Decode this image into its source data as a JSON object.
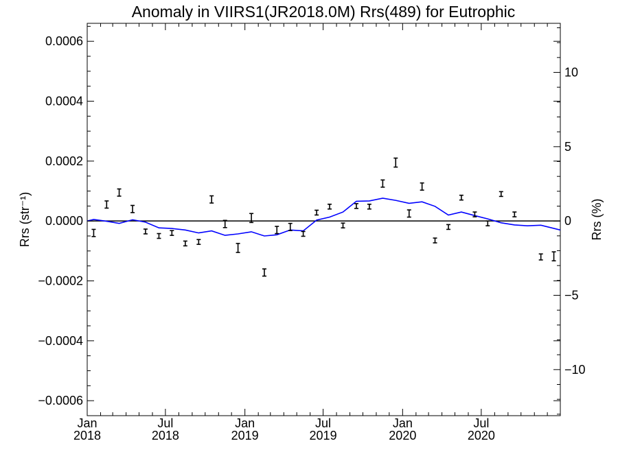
{
  "chart_data": {
    "type": "line",
    "title": "Anomaly in VIIRS1(JR2018.0M) Rrs(489) for Eutrophic",
    "ylabel_left": "Rrs (str⁻¹)",
    "ylabel_right": "Rrs (%)",
    "xlabel": "",
    "xlim": [
      "2018-01-01",
      "2020-12-31"
    ],
    "ylim": [
      -0.00065,
      0.00066
    ],
    "ylim_right": [
      -13.1,
      13.3
    ],
    "grid": false,
    "legend": "none",
    "x_ticks": [
      {
        "date": "2018-01-01",
        "month": "Jan",
        "year": "2018"
      },
      {
        "date": "2018-07-01",
        "month": "Jul",
        "year": "2018"
      },
      {
        "date": "2019-01-01",
        "month": "Jan",
        "year": "2019"
      },
      {
        "date": "2019-07-01",
        "month": "Jul",
        "year": "2019"
      },
      {
        "date": "2020-01-01",
        "month": "Jan",
        "year": "2020"
      },
      {
        "date": "2020-07-01",
        "month": "Jul",
        "year": "2020"
      }
    ],
    "y_ticks_left": [
      {
        "value": 0.0006,
        "label": "0.0006"
      },
      {
        "value": 0.0004,
        "label": "0.0004"
      },
      {
        "value": 0.0002,
        "label": "0.0002"
      },
      {
        "value": 0.0,
        "label": "0.0000"
      },
      {
        "value": -0.0002,
        "label": "−0.0002"
      },
      {
        "value": -0.0004,
        "label": "−0.0004"
      },
      {
        "value": -0.0006,
        "label": "−0.0006"
      }
    ],
    "y_ticks_right": [
      {
        "value": 10,
        "label": "10"
      },
      {
        "value": 5,
        "label": "5"
      },
      {
        "value": 0,
        "label": "0"
      },
      {
        "value": -5,
        "label": "−5"
      },
      {
        "value": -10,
        "label": "−10"
      }
    ],
    "series": [
      {
        "type": "errorbar",
        "color": "#000000",
        "points": [
          {
            "x": "2018-01-16",
            "y": -4e-05,
            "err": 1.2e-05
          },
          {
            "x": "2018-02-15",
            "y": 5.5e-05,
            "err": 1.2e-05
          },
          {
            "x": "2018-03-16",
            "y": 9.5e-05,
            "err": 1.2e-05
          },
          {
            "x": "2018-04-16",
            "y": 4e-05,
            "err": 1.2e-05
          },
          {
            "x": "2018-05-16",
            "y": -3.5e-05,
            "err": 8e-06
          },
          {
            "x": "2018-06-16",
            "y": -5e-05,
            "err": 8e-06
          },
          {
            "x": "2018-07-16",
            "y": -4e-05,
            "err": 8e-06
          },
          {
            "x": "2018-08-16",
            "y": -7.5e-05,
            "err": 8e-06
          },
          {
            "x": "2018-09-16",
            "y": -7e-05,
            "err": 8e-06
          },
          {
            "x": "2018-10-16",
            "y": 7.2e-05,
            "err": 1.2e-05
          },
          {
            "x": "2018-11-16",
            "y": -1e-05,
            "err": 1.2e-05
          },
          {
            "x": "2018-12-16",
            "y": -9e-05,
            "err": 1.5e-05
          },
          {
            "x": "2019-01-16",
            "y": 1e-05,
            "err": 1.5e-05
          },
          {
            "x": "2019-02-15",
            "y": -0.000172,
            "err": 1.2e-05
          },
          {
            "x": "2019-03-16",
            "y": -3e-05,
            "err": 1.2e-05
          },
          {
            "x": "2019-04-16",
            "y": -2e-05,
            "err": 1.2e-05
          },
          {
            "x": "2019-05-16",
            "y": -4.3e-05,
            "err": 8e-06
          },
          {
            "x": "2019-06-16",
            "y": 2.8e-05,
            "err": 8e-06
          },
          {
            "x": "2019-07-16",
            "y": 4.8e-05,
            "err": 8e-06
          },
          {
            "x": "2019-08-16",
            "y": -1.5e-05,
            "err": 8e-06
          },
          {
            "x": "2019-09-16",
            "y": 5e-05,
            "err": 8e-06
          },
          {
            "x": "2019-10-16",
            "y": 4.8e-05,
            "err": 8e-06
          },
          {
            "x": "2019-11-16",
            "y": 0.000125,
            "err": 1.2e-05
          },
          {
            "x": "2019-12-16",
            "y": 0.000195,
            "err": 1.5e-05
          },
          {
            "x": "2020-01-16",
            "y": 2.5e-05,
            "err": 1.2e-05
          },
          {
            "x": "2020-02-15",
            "y": 0.000115,
            "err": 1.2e-05
          },
          {
            "x": "2020-03-16",
            "y": -6.5e-05,
            "err": 8e-06
          },
          {
            "x": "2020-04-16",
            "y": -2e-05,
            "err": 8e-06
          },
          {
            "x": "2020-05-16",
            "y": 7.8e-05,
            "err": 8e-06
          },
          {
            "x": "2020-06-16",
            "y": 2.2e-05,
            "err": 8e-06
          },
          {
            "x": "2020-07-16",
            "y": -8e-06,
            "err": 8e-06
          },
          {
            "x": "2020-08-16",
            "y": 9e-05,
            "err": 8e-06
          },
          {
            "x": "2020-09-16",
            "y": 2.2e-05,
            "err": 8e-06
          },
          {
            "x": "2020-11-16",
            "y": -0.00012,
            "err": 1e-05
          },
          {
            "x": "2020-12-16",
            "y": -0.000118,
            "err": 1.5e-05
          }
        ]
      },
      {
        "type": "line",
        "color": "#0000ff",
        "points": [
          {
            "x": "2018-01-01",
            "y": 0.0
          },
          {
            "x": "2018-01-16",
            "y": 5e-06
          },
          {
            "x": "2018-02-15",
            "y": -1e-06
          },
          {
            "x": "2018-03-16",
            "y": -8e-06
          },
          {
            "x": "2018-04-16",
            "y": 4e-06
          },
          {
            "x": "2018-05-16",
            "y": -4e-06
          },
          {
            "x": "2018-06-16",
            "y": -2.3e-05
          },
          {
            "x": "2018-07-16",
            "y": -2.5e-05
          },
          {
            "x": "2018-08-16",
            "y": -3e-05
          },
          {
            "x": "2018-09-16",
            "y": -4e-05
          },
          {
            "x": "2018-10-16",
            "y": -3.3e-05
          },
          {
            "x": "2018-11-16",
            "y": -4.8e-05
          },
          {
            "x": "2018-12-16",
            "y": -4.3e-05
          },
          {
            "x": "2019-01-16",
            "y": -3.6e-05
          },
          {
            "x": "2019-02-15",
            "y": -5e-05
          },
          {
            "x": "2019-03-16",
            "y": -4.6e-05
          },
          {
            "x": "2019-04-16",
            "y": -3e-05
          },
          {
            "x": "2019-05-16",
            "y": -3.3e-05
          },
          {
            "x": "2019-06-16",
            "y": 3e-06
          },
          {
            "x": "2019-07-16",
            "y": 1.3e-05
          },
          {
            "x": "2019-08-16",
            "y": 3e-05
          },
          {
            "x": "2019-09-16",
            "y": 6.6e-05
          },
          {
            "x": "2019-10-16",
            "y": 6.7e-05
          },
          {
            "x": "2019-11-16",
            "y": 7.6e-05
          },
          {
            "x": "2019-12-16",
            "y": 6.9e-05
          },
          {
            "x": "2020-01-16",
            "y": 5.9e-05
          },
          {
            "x": "2020-02-15",
            "y": 6.4e-05
          },
          {
            "x": "2020-03-16",
            "y": 4.9e-05
          },
          {
            "x": "2020-04-16",
            "y": 2e-05
          },
          {
            "x": "2020-05-16",
            "y": 3e-05
          },
          {
            "x": "2020-06-16",
            "y": 1.8e-05
          },
          {
            "x": "2020-07-16",
            "y": 7e-06
          },
          {
            "x": "2020-08-16",
            "y": -6e-06
          },
          {
            "x": "2020-09-16",
            "y": -1.3e-05
          },
          {
            "x": "2020-10-16",
            "y": -1.6e-05
          },
          {
            "x": "2020-11-16",
            "y": -1.4e-05
          },
          {
            "x": "2020-12-31",
            "y": -3e-05
          }
        ]
      }
    ]
  }
}
